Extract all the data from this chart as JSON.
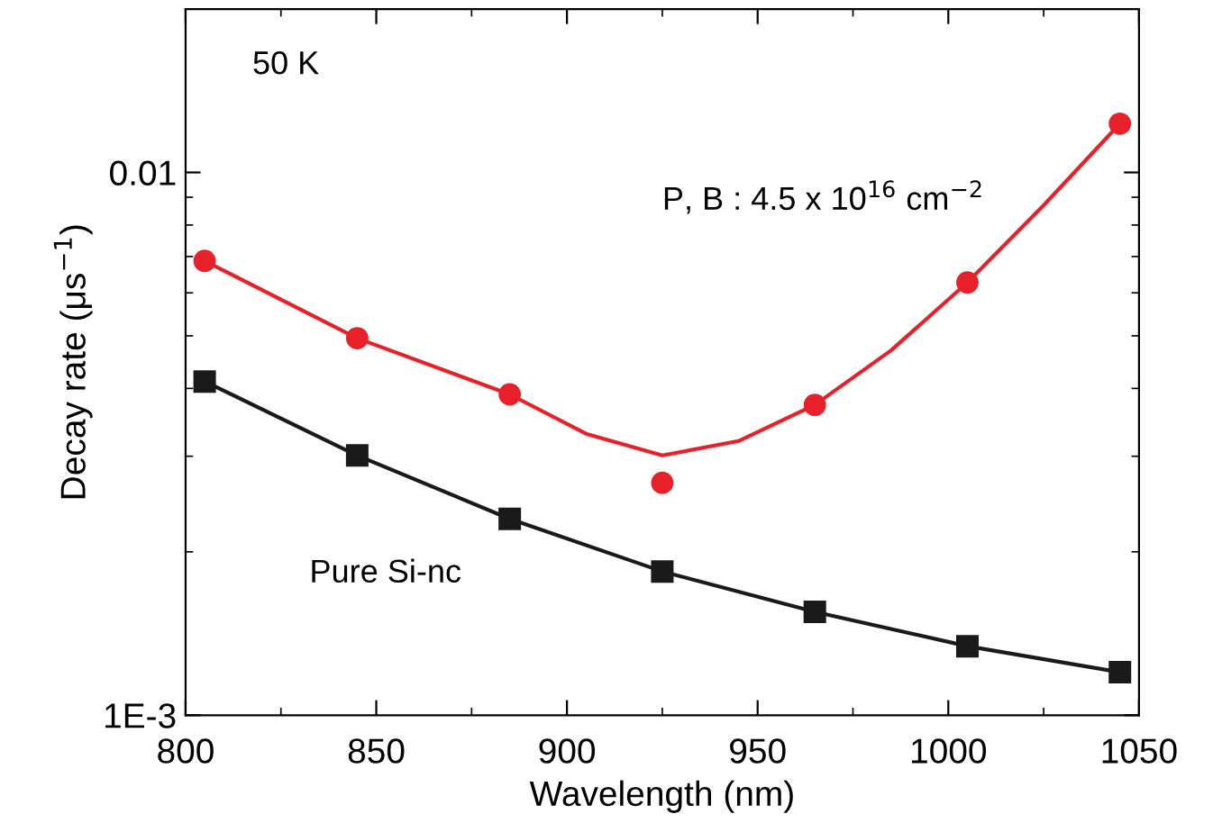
{
  "chart_data": {
    "type": "line",
    "xlabel": "Wavelength (nm)",
    "ylabel": "Decay rate (μs$^{−1}$)",
    "log": "y",
    "xlim": [
      800,
      1050
    ],
    "xticks": [
      800,
      850,
      900,
      950,
      1000,
      1050
    ],
    "ylim": [
      0.001,
      0.02
    ],
    "yticks": [
      {
        "value": 0.001,
        "label": "1E-3"
      },
      {
        "value": 0.01,
        "label": "0.01"
      }
    ],
    "grid": false,
    "annotations": [
      "50 K",
      "P, B : 4.5 x 10$^{16}$ cm$^{−2}$",
      "Pure Si-nc"
    ],
    "series": [
      {
        "type": "scatter",
        "marker": "circle",
        "color": "#e8202a",
        "x": [
          805,
          845,
          885,
          925,
          965,
          1005,
          1045
        ],
        "values": [
          0.00687,
          0.00495,
          0.0039,
          0.00268,
          0.00373,
          0.00627,
          0.0123
        ]
      },
      {
        "marker": "none",
        "color": "#e8202a",
        "x": [
          805,
          845,
          885,
          905,
          925,
          945,
          965,
          985,
          1005,
          1025,
          1045
        ],
        "values": [
          0.00687,
          0.00495,
          0.0039,
          0.0033,
          0.00301,
          0.0032,
          0.00373,
          0.0047,
          0.00627,
          0.0087,
          0.0123
        ]
      },
      {
        "marker": "square",
        "color": "#1a1a1a",
        "x": [
          805,
          845,
          885,
          925,
          965,
          1005,
          1045
        ],
        "values": [
          0.00412,
          0.00301,
          0.0023,
          0.00184,
          0.00155,
          0.00134,
          0.0012
        ]
      }
    ]
  }
}
